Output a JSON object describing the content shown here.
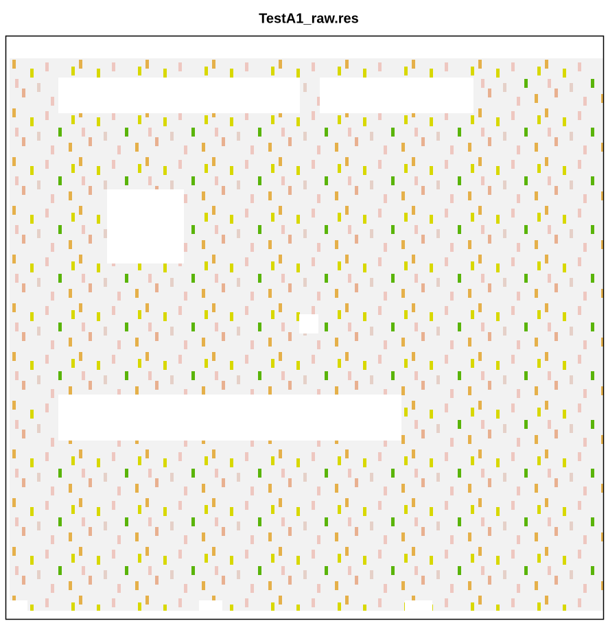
{
  "chart_data": {
    "type": "image",
    "title": "TestA1_raw.res"
  }
}
